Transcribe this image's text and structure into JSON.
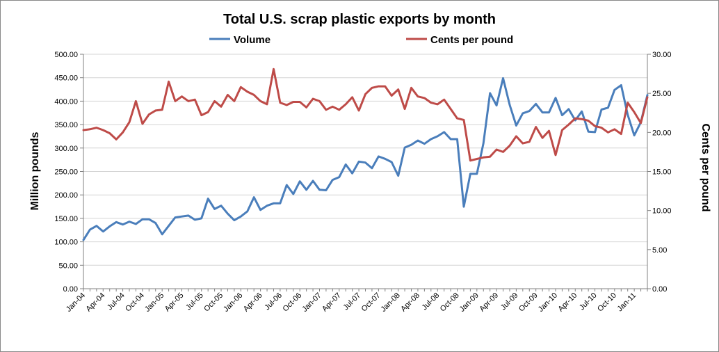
{
  "chart_data": {
    "type": "line",
    "title": "Total U.S. scrap plastic exports by month",
    "ylabel_left": "Million pounds",
    "ylabel_right": "Cents per pound",
    "ylim_left": [
      0,
      500
    ],
    "ylim_right": [
      0,
      30
    ],
    "yticks_left": [
      "0.00",
      "50.00",
      "100.00",
      "150.00",
      "200.00",
      "250.00",
      "300.00",
      "350.00",
      "400.00",
      "450.00",
      "500.00"
    ],
    "yticks_right": [
      "0.00",
      "5.00",
      "10.00",
      "15.00",
      "20.00",
      "25.00",
      "30.00"
    ],
    "x_tick_labels": [
      "Jan-04",
      "Apr-04",
      "Jul-04",
      "Oct-04",
      "Jan-05",
      "Apr-05",
      "Jul-05",
      "Oct-05",
      "Jan-06",
      "Apr-06",
      "Jul-06",
      "Oct-06",
      "Jan-07",
      "Apr-07",
      "Jul-07",
      "Oct-07",
      "Jan-08",
      "Apr-08",
      "Jul-08",
      "Oct-08",
      "Jan-09",
      "Apr-09",
      "Jul-09",
      "Oct-09",
      "Jan-10",
      "Apr-10",
      "Jul-10",
      "Oct-10",
      "Jan-11"
    ],
    "grid": true,
    "legend_position": "top",
    "x_start": "Jan-04",
    "x_end": "Mar-11",
    "series": [
      {
        "name": "Volume",
        "axis": "left",
        "color": "#4a7ebb",
        "values": [
          104,
          126,
          134,
          122,
          133,
          142,
          137,
          143,
          138,
          148,
          148,
          140,
          116,
          134,
          152,
          154,
          156,
          147,
          150,
          192,
          170,
          177,
          160,
          146,
          154,
          165,
          195,
          168,
          177,
          182,
          182,
          221,
          202,
          229,
          211,
          230,
          211,
          210,
          232,
          238,
          265,
          246,
          271,
          269,
          257,
          282,
          277,
          270,
          241,
          301,
          307,
          316,
          309,
          319,
          325,
          334,
          319,
          319,
          175,
          245,
          245,
          310,
          417,
          391,
          449,
          392,
          348,
          374,
          379,
          394,
          376,
          376,
          407,
          370,
          383,
          359,
          378,
          335,
          334,
          382,
          386,
          424,
          434,
          371,
          327,
          355,
          413
        ]
      },
      {
        "name": "Cents per pound",
        "axis": "right",
        "color": "#be4b48",
        "values": [
          20.3,
          20.4,
          20.6,
          20.3,
          19.9,
          19.1,
          20.0,
          21.3,
          24.0,
          21.1,
          22.3,
          22.8,
          22.9,
          26.5,
          24.0,
          24.6,
          24.0,
          24.2,
          22.2,
          22.6,
          24.0,
          23.3,
          24.8,
          24.0,
          25.8,
          25.2,
          24.8,
          24.0,
          23.6,
          28.1,
          23.8,
          23.5,
          23.9,
          23.9,
          23.2,
          24.3,
          24.0,
          22.9,
          23.3,
          22.9,
          23.6,
          24.5,
          22.8,
          24.9,
          25.7,
          25.9,
          25.9,
          24.7,
          25.5,
          23.0,
          25.7,
          24.6,
          24.4,
          23.8,
          23.6,
          24.2,
          23.0,
          21.8,
          21.6,
          16.4,
          16.6,
          16.8,
          16.9,
          17.8,
          17.5,
          18.3,
          19.5,
          18.6,
          18.8,
          20.7,
          19.3,
          20.2,
          17.1,
          20.3,
          21.0,
          21.8,
          21.7,
          21.5,
          20.8,
          20.6,
          20.0,
          20.4,
          19.8,
          23.8,
          22.6,
          21.2,
          24.5
        ]
      }
    ]
  }
}
